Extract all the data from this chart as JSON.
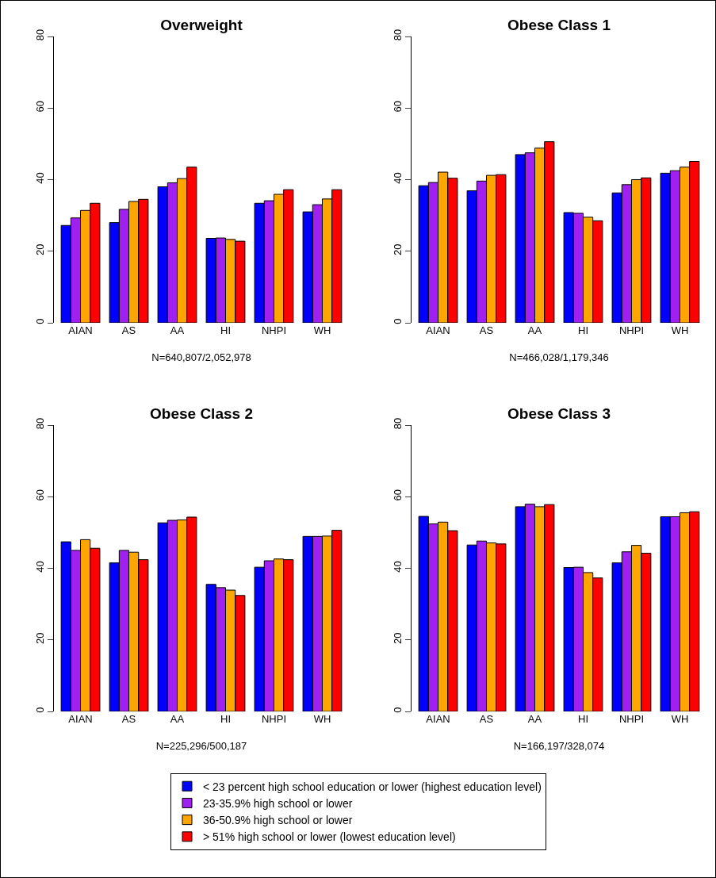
{
  "chart_data": [
    {
      "type": "bar",
      "title": "Overweight",
      "xlabel": "N=640,807/2,052,978",
      "categories": [
        "AIAN",
        "AS",
        "AA",
        "HI",
        "NHPI",
        "WH"
      ],
      "ylim": [
        0,
        80
      ],
      "yticks": [
        0,
        20,
        40,
        60,
        80
      ],
      "series": [
        {
          "color": "#0000ff",
          "values": [
            27.2,
            28.0,
            38.0,
            23.6,
            33.4,
            31.0
          ]
        },
        {
          "color": "#a020f0",
          "values": [
            29.3,
            31.7,
            39.1,
            23.7,
            34.1,
            33.0
          ]
        },
        {
          "color": "#ffa500",
          "values": [
            31.4,
            33.9,
            40.3,
            23.3,
            35.9,
            34.6
          ]
        },
        {
          "color": "#ff0000",
          "values": [
            33.4,
            34.5,
            43.5,
            22.8,
            37.2,
            37.2
          ]
        }
      ]
    },
    {
      "type": "bar",
      "title": "Obese Class 1",
      "xlabel": "N=466,028/1,179,346",
      "categories": [
        "AIAN",
        "AS",
        "AA",
        "HI",
        "NHPI",
        "WH"
      ],
      "ylim": [
        0,
        80
      ],
      "yticks": [
        0,
        20,
        40,
        60,
        80
      ],
      "series": [
        {
          "color": "#0000ff",
          "values": [
            38.3,
            36.9,
            47.0,
            30.8,
            36.3,
            41.8
          ]
        },
        {
          "color": "#a020f0",
          "values": [
            39.2,
            39.6,
            47.5,
            30.6,
            38.6,
            42.5
          ]
        },
        {
          "color": "#ffa500",
          "values": [
            42.1,
            41.2,
            48.8,
            29.5,
            40.0,
            43.5
          ]
        },
        {
          "color": "#ff0000",
          "values": [
            40.4,
            41.4,
            50.6,
            28.5,
            40.5,
            45.1
          ]
        }
      ]
    },
    {
      "type": "bar",
      "title": "Obese Class 2",
      "xlabel": "N=225,296/500,187",
      "categories": [
        "AIAN",
        "AS",
        "AA",
        "HI",
        "NHPI",
        "WH"
      ],
      "ylim": [
        0,
        80
      ],
      "yticks": [
        0,
        20,
        40,
        60,
        80
      ],
      "series": [
        {
          "color": "#0000ff",
          "values": [
            47.4,
            41.5,
            52.7,
            35.5,
            40.3,
            48.9
          ]
        },
        {
          "color": "#a020f0",
          "values": [
            45.0,
            45.0,
            53.4,
            34.6,
            42.1,
            48.9
          ]
        },
        {
          "color": "#ffa500",
          "values": [
            48.0,
            44.5,
            53.5,
            33.9,
            42.6,
            49.0
          ]
        },
        {
          "color": "#ff0000",
          "values": [
            45.6,
            42.4,
            54.3,
            32.4,
            42.4,
            50.6
          ]
        }
      ]
    },
    {
      "type": "bar",
      "title": "Obese Class 3",
      "xlabel": "N=166,197/328,074",
      "categories": [
        "AIAN",
        "AS",
        "AA",
        "HI",
        "NHPI",
        "WH"
      ],
      "ylim": [
        0,
        80
      ],
      "yticks": [
        0,
        20,
        40,
        60,
        80
      ],
      "legend": "bottom",
      "series": [
        {
          "name": "< 23 percent high school education or lower (highest education level)",
          "color": "#0000ff",
          "values": [
            54.5,
            46.5,
            57.2,
            40.2,
            41.5,
            54.4
          ]
        },
        {
          "name": "23-35.9% high school or lower",
          "color": "#a020f0",
          "values": [
            52.4,
            47.6,
            57.9,
            40.3,
            44.6,
            54.4
          ]
        },
        {
          "name": "36-50.9% high school or lower",
          "color": "#ffa500",
          "values": [
            52.9,
            47.1,
            57.2,
            38.8,
            46.4,
            55.5
          ]
        },
        {
          "name": "> 51% high school or lower (lowest education level)",
          "color": "#ff0000",
          "values": [
            50.5,
            46.8,
            57.8,
            37.3,
            44.2,
            55.8
          ]
        }
      ]
    }
  ]
}
